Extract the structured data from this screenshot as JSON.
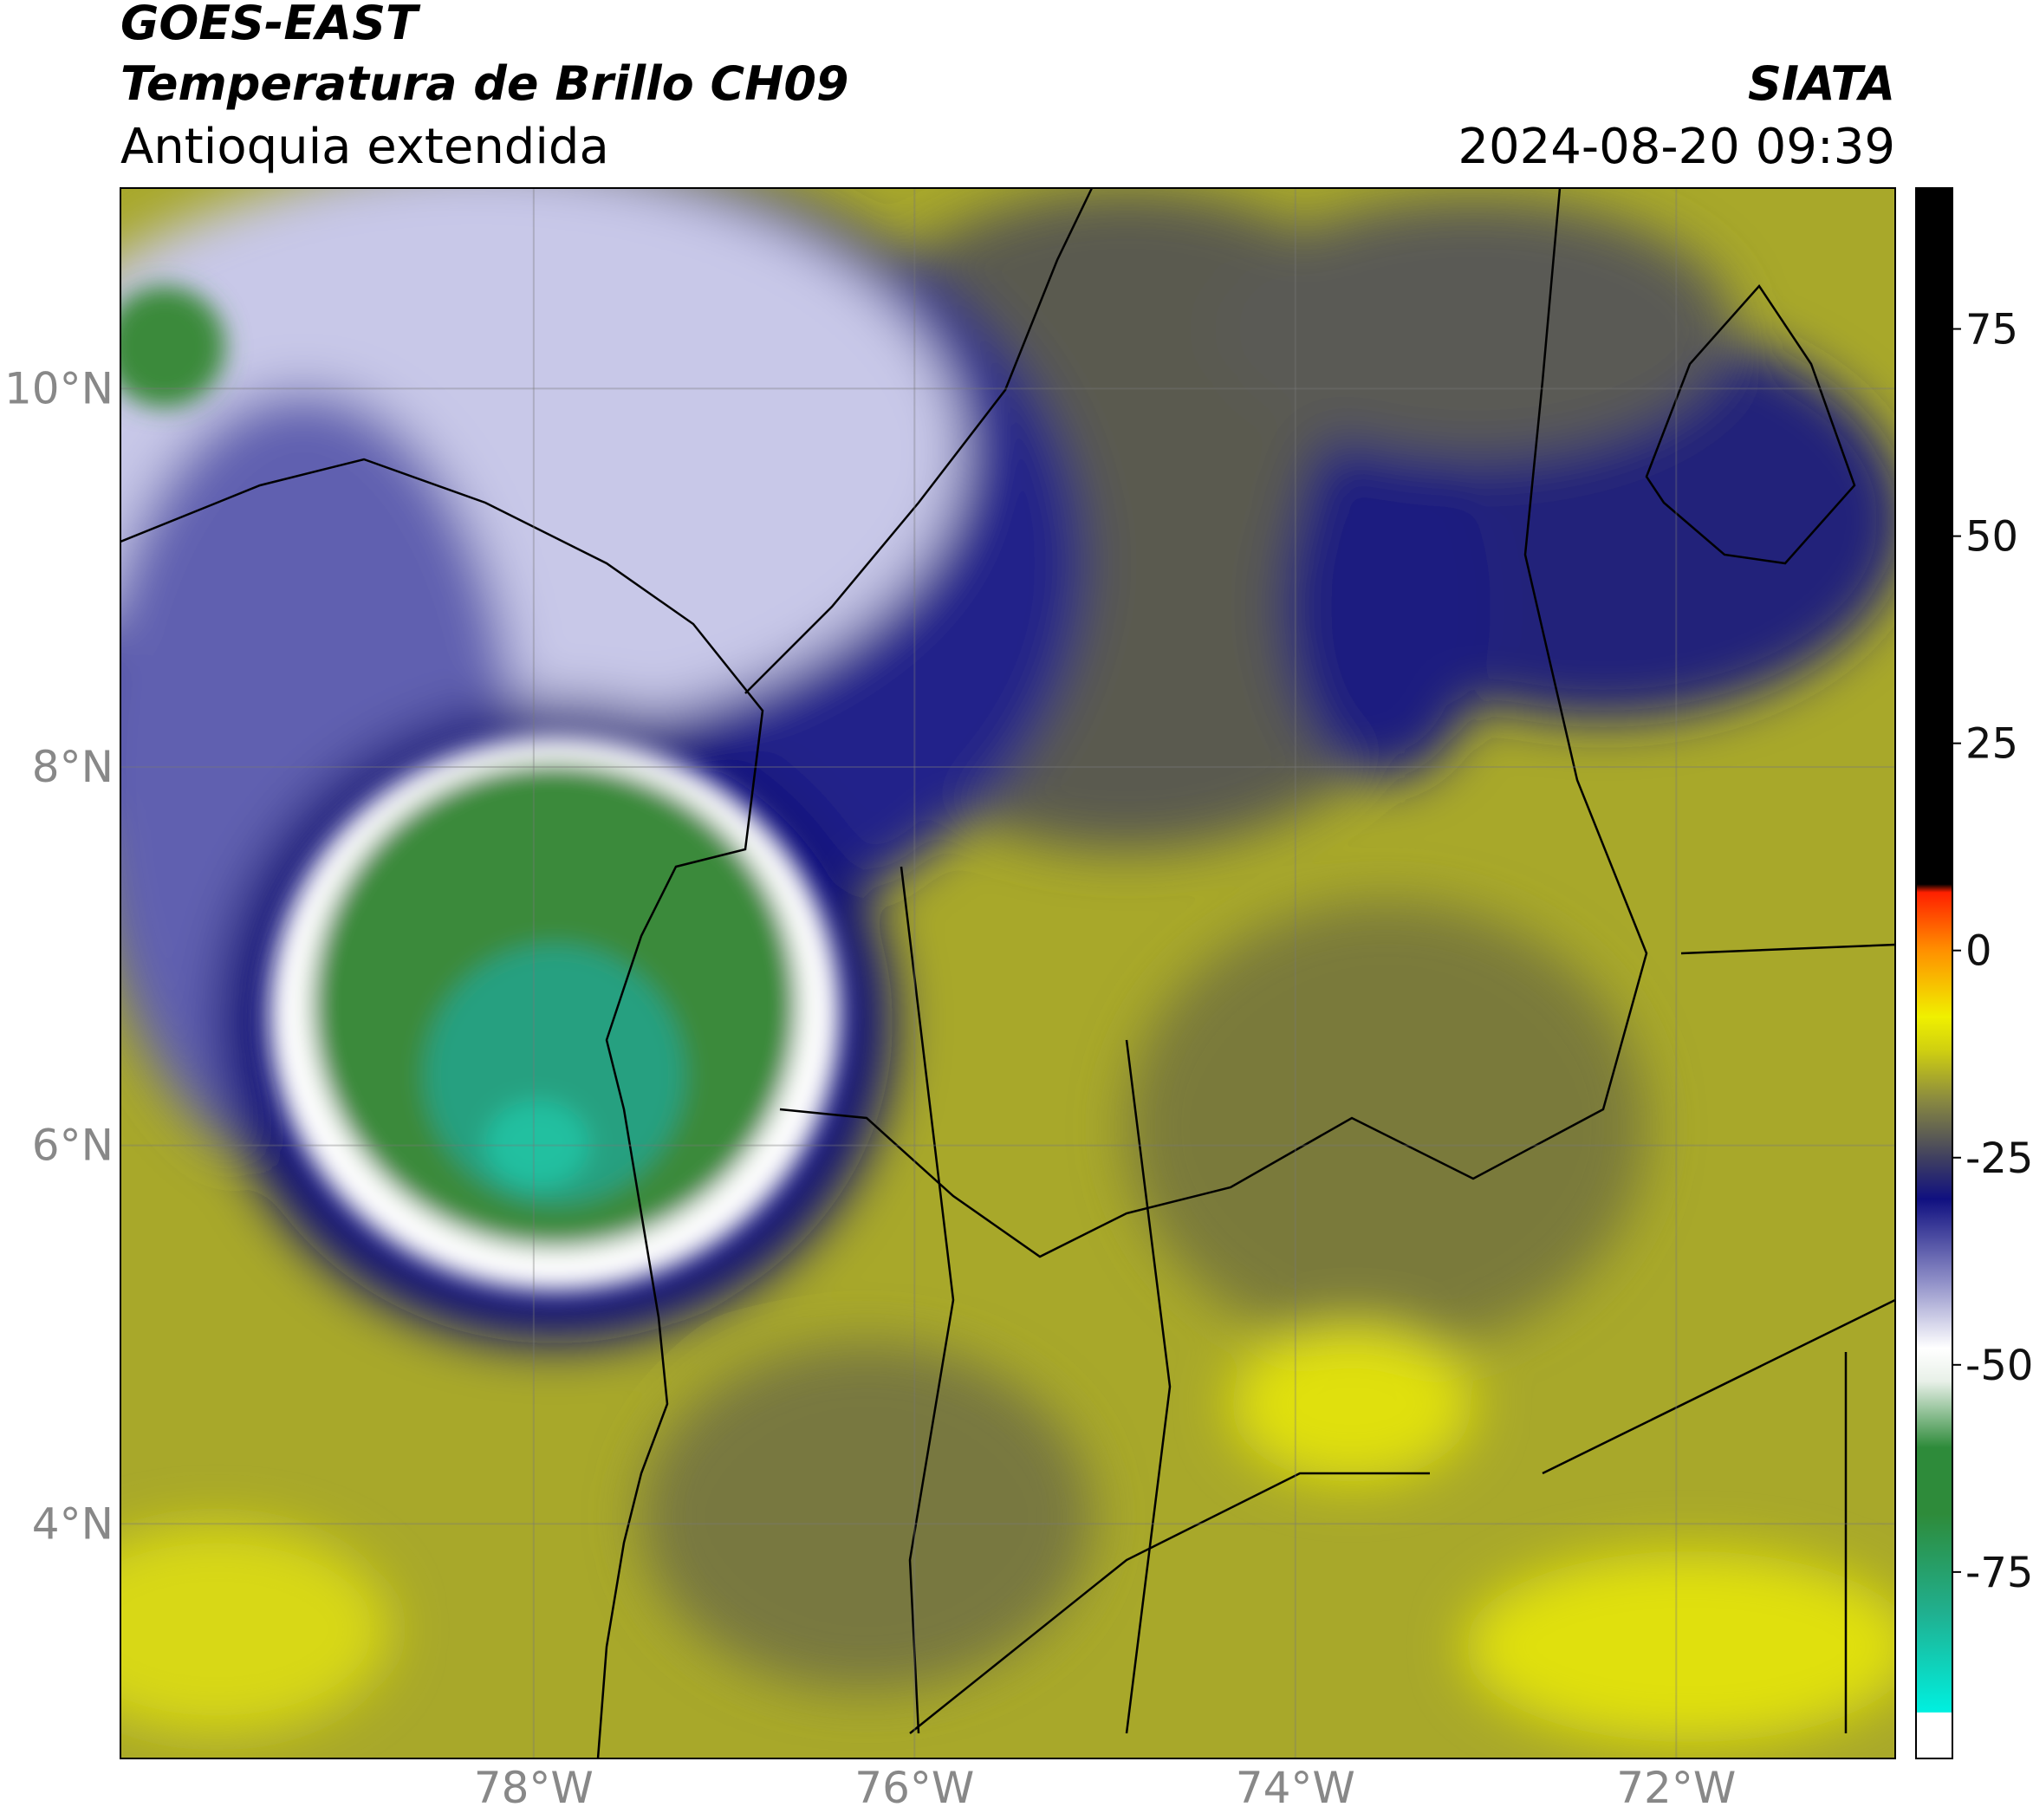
{
  "header": {
    "title": "GOES-EAST",
    "subtitle": "Temperatura de Brillo CH09",
    "region": "Antioquia extendida",
    "source": "SIATA",
    "datetime": "2024-08-20 09:39"
  },
  "map": {
    "xlim": [
      -80.17,
      -70.85
    ],
    "ylim": [
      2.76,
      11.06
    ],
    "xticks": [
      {
        "value": -78,
        "label": "78°W"
      },
      {
        "value": -76,
        "label": "76°W"
      },
      {
        "value": -74,
        "label": "74°W"
      },
      {
        "value": -72,
        "label": "72°W"
      }
    ],
    "yticks": [
      {
        "value": 4,
        "label": "4°N"
      },
      {
        "value": 6,
        "label": "6°N"
      },
      {
        "value": 8,
        "label": "8°N"
      },
      {
        "value": 10,
        "label": "10°N"
      }
    ],
    "grid": true
  },
  "colorbar": {
    "lim": [
      -97.5,
      92
    ],
    "ticks": [
      -75,
      -50,
      -25,
      0,
      25,
      50,
      75
    ],
    "stops": [
      {
        "value": -97.5,
        "color": "#ffffff"
      },
      {
        "value": -92,
        "color": "#ffffff"
      },
      {
        "value": -91.9,
        "color": "#00f0e0"
      },
      {
        "value": -80,
        "color": "#20b090"
      },
      {
        "value": -68,
        "color": "#2e8b3a"
      },
      {
        "value": -60,
        "color": "#2e8b3a"
      },
      {
        "value": -52,
        "color": "#e8f0e8"
      },
      {
        "value": -48,
        "color": "#ffffff"
      },
      {
        "value": -40,
        "color": "#9090c8"
      },
      {
        "value": -30,
        "color": "#101080"
      },
      {
        "value": -25,
        "color": "#404060"
      },
      {
        "value": -18,
        "color": "#8a8a40"
      },
      {
        "value": -12,
        "color": "#d0d010"
      },
      {
        "value": -8,
        "color": "#f0f000"
      },
      {
        "value": 0,
        "color": "#ff9000"
      },
      {
        "value": 7,
        "color": "#ff2000"
      },
      {
        "value": 8,
        "color": "#000000"
      },
      {
        "value": 92,
        "color": "#000000"
      }
    ]
  }
}
